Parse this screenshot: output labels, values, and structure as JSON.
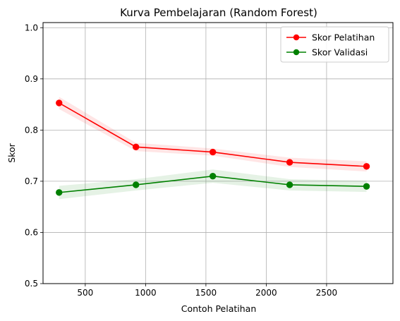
{
  "chart_data": {
    "type": "line",
    "title": "Kurva Pembelajaran (Random Forest)",
    "xlabel": "Contoh Pelatihan",
    "ylabel": "Skor",
    "xlim": [
      150,
      3050
    ],
    "ylim": [
      0.5,
      1.01
    ],
    "xticks": [
      500,
      1000,
      1500,
      2000,
      2500
    ],
    "yticks": [
      0.5,
      0.6,
      0.7,
      0.8,
      0.9,
      1.0
    ],
    "xtick_labels": [
      "500",
      "1000",
      "1500",
      "2000",
      "2500"
    ],
    "ytick_labels": [
      "0.5",
      "0.6",
      "0.7",
      "0.8",
      "0.9",
      "1.0"
    ],
    "grid": true,
    "legend_position": "top-right",
    "x": [
      283,
      920,
      1557,
      2194,
      2831
    ],
    "series": [
      {
        "name": "Skor Pelatihan",
        "color": "#ff0000",
        "values": [
          0.853,
          0.767,
          0.757,
          0.737,
          0.729
        ],
        "band_lower": [
          0.841,
          0.759,
          0.75,
          0.728,
          0.719
        ],
        "band_upper": [
          0.865,
          0.775,
          0.764,
          0.746,
          0.739
        ]
      },
      {
        "name": "Skor Validasi",
        "color": "#008000",
        "values": [
          0.678,
          0.693,
          0.71,
          0.693,
          0.69
        ],
        "band_lower": [
          0.665,
          0.682,
          0.697,
          0.682,
          0.679
        ],
        "band_upper": [
          0.691,
          0.704,
          0.723,
          0.704,
          0.701
        ]
      }
    ]
  }
}
